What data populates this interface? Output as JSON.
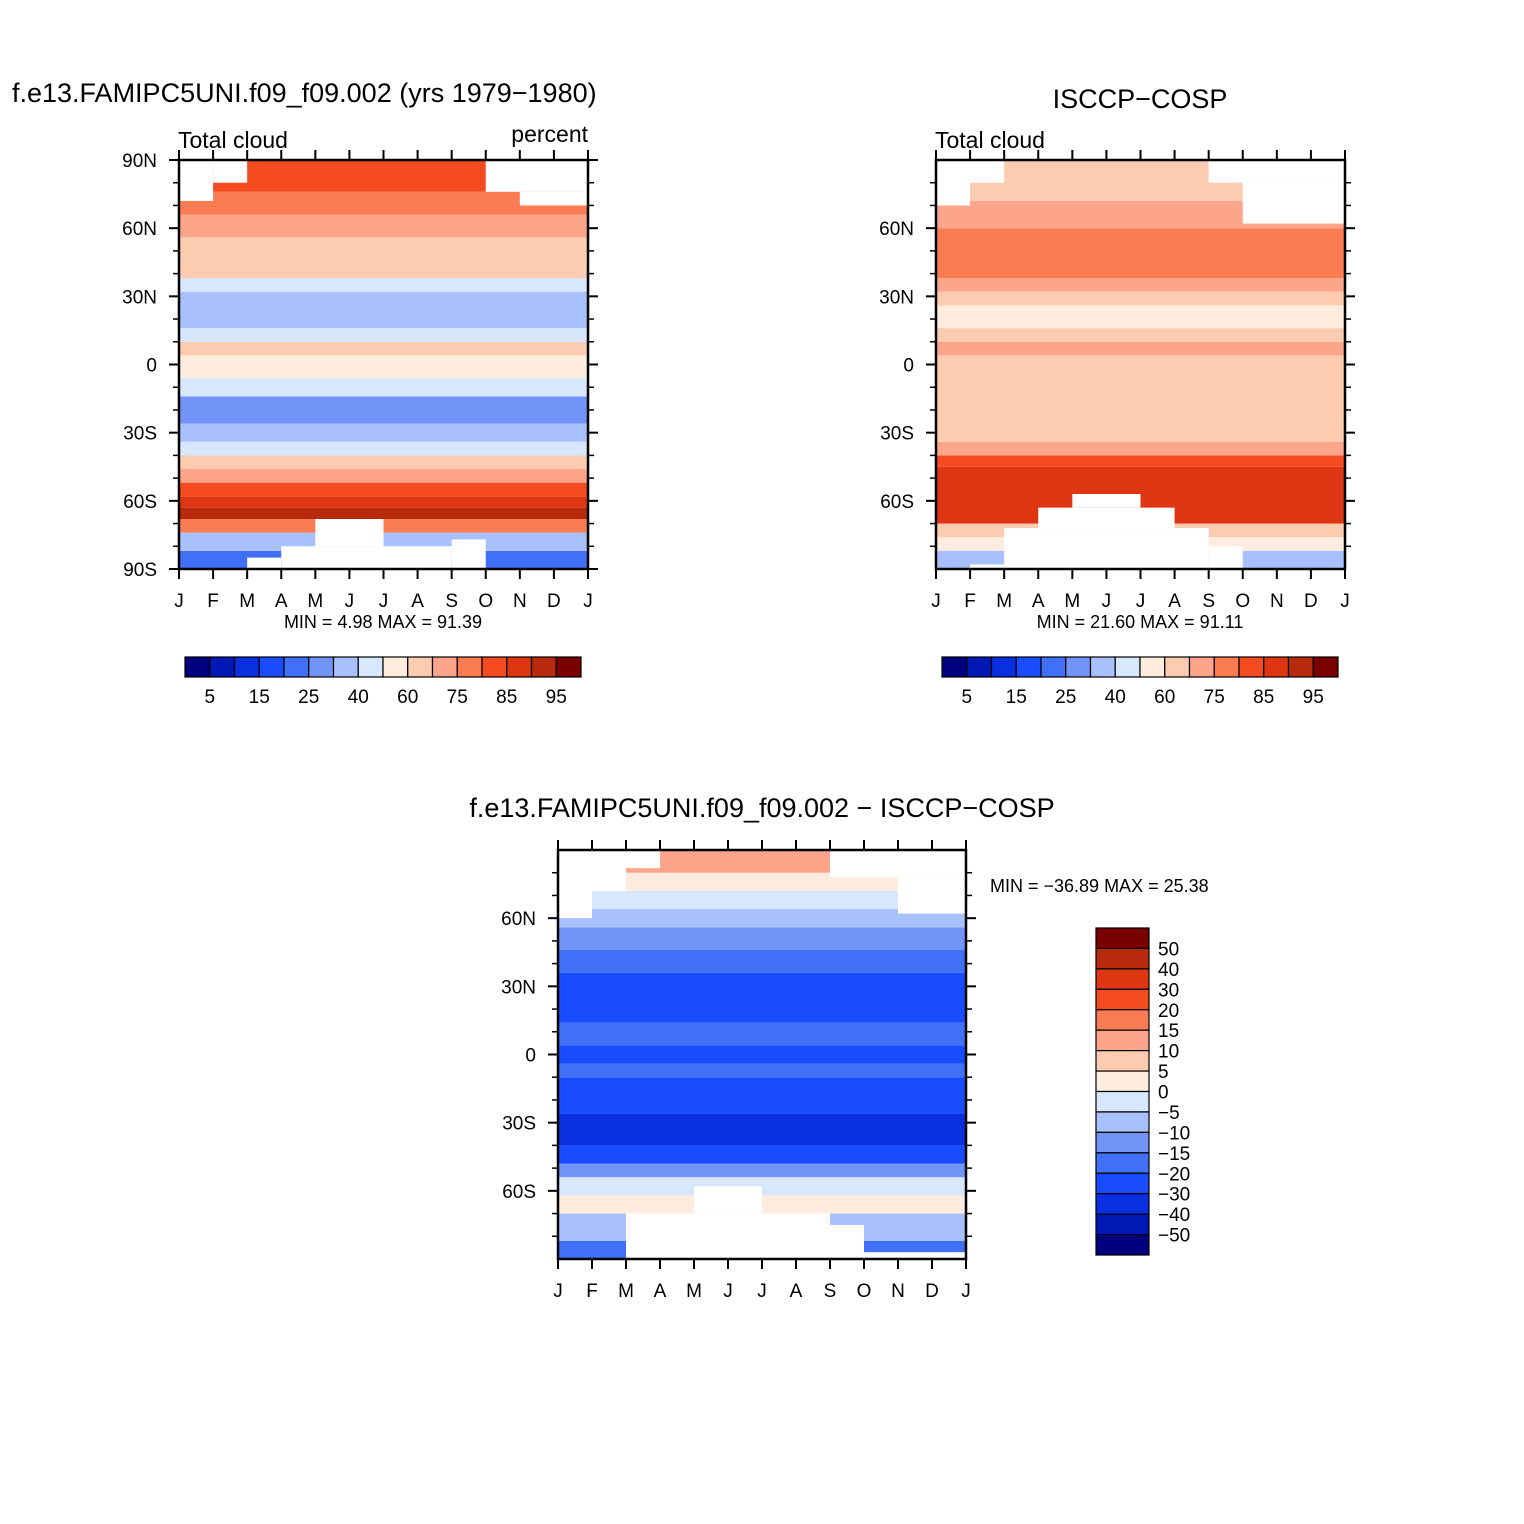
{
  "chart_data": [
    {
      "type": "heatmap",
      "title": "f.e13.FAMIPC5UNI.f09_f09.002 (yrs 1979−1980)",
      "left_label": "Total cloud",
      "right_label": "percent",
      "x_ticks": [
        "J",
        "F",
        "M",
        "A",
        "M",
        "J",
        "J",
        "A",
        "S",
        "O",
        "N",
        "D",
        "J"
      ],
      "y_ticks": [
        "90N",
        "60N",
        "30N",
        "0",
        "30S",
        "60S",
        "90S"
      ],
      "y_tick_values": [
        90,
        60,
        30,
        0,
        -30,
        -60,
        -90
      ],
      "ylim": [
        -90,
        90
      ],
      "stats_text": "MIN =    4.98  MAX =   91.39",
      "min": 4.98,
      "max": 91.39,
      "bands": [
        {
          "lat": [
            -90,
            -82
          ],
          "value": 22
        },
        {
          "lat": [
            -82,
            -74
          ],
          "value": 32
        },
        {
          "lat": [
            -74,
            -68
          ],
          "value": 78
        },
        {
          "lat": [
            -68,
            -63
          ],
          "value": 92
        },
        {
          "lat": [
            -63,
            -58
          ],
          "value": 88
        },
        {
          "lat": [
            -58,
            -52
          ],
          "value": 82
        },
        {
          "lat": [
            -52,
            -46
          ],
          "value": 72
        },
        {
          "lat": [
            -46,
            -40
          ],
          "value": 62
        },
        {
          "lat": [
            -40,
            -34
          ],
          "value": 43
        },
        {
          "lat": [
            -34,
            -26
          ],
          "value": 33
        },
        {
          "lat": [
            -26,
            -14
          ],
          "value": 28
        },
        {
          "lat": [
            -14,
            -6
          ],
          "value": 42
        },
        {
          "lat": [
            -6,
            4
          ],
          "value": 50
        },
        {
          "lat": [
            4,
            10
          ],
          "value": 60
        },
        {
          "lat": [
            10,
            16
          ],
          "value": 42
        },
        {
          "lat": [
            16,
            24
          ],
          "value": 32
        },
        {
          "lat": [
            24,
            32
          ],
          "value": 38
        },
        {
          "lat": [
            32,
            38
          ],
          "value": 43
        },
        {
          "lat": [
            38,
            46
          ],
          "value": 62
        },
        {
          "lat": [
            46,
            56
          ],
          "value": 68
        },
        {
          "lat": [
            56,
            66
          ],
          "value": 72
        },
        {
          "lat": [
            66,
            76
          ],
          "value": 78
        },
        {
          "lat": [
            76,
            90
          ],
          "value": 82
        }
      ],
      "masks": [
        {
          "month": [
            3,
            8
          ],
          "lat": [
            -90,
            -80
          ]
        },
        {
          "month": [
            4,
            6
          ],
          "lat": [
            -80,
            -68
          ]
        },
        {
          "month": [
            2,
            3
          ],
          "lat": [
            -90,
            -85
          ]
        },
        {
          "month": [
            8,
            9
          ],
          "lat": [
            -90,
            -77
          ]
        },
        {
          "month": [
            0,
            1
          ],
          "lat": [
            72,
            90
          ]
        },
        {
          "month": [
            1,
            2
          ],
          "lat": [
            80,
            90
          ]
        },
        {
          "month": [
            9,
            12
          ],
          "lat": [
            76,
            90
          ]
        },
        {
          "month": [
            10,
            12
          ],
          "lat": [
            70,
            76
          ]
        }
      ]
    },
    {
      "type": "heatmap",
      "title": "ISCCP−COSP",
      "left_label": "Total cloud",
      "x_ticks": [
        "J",
        "F",
        "M",
        "A",
        "M",
        "J",
        "J",
        "A",
        "S",
        "O",
        "N",
        "D",
        "J"
      ],
      "y_ticks": [
        "60N",
        "30N",
        "0",
        "30S",
        "60S"
      ],
      "y_tick_values": [
        60,
        30,
        0,
        -30,
        -60
      ],
      "ylim": [
        -90,
        90
      ],
      "stats_text": "MIN =   21.60  MAX =   91.11",
      "min": 21.6,
      "max": 91.11,
      "bands": [
        {
          "lat": [
            -90,
            -82
          ],
          "value": 35
        },
        {
          "lat": [
            -82,
            -76
          ],
          "value": 50
        },
        {
          "lat": [
            -76,
            -70
          ],
          "value": 65
        },
        {
          "lat": [
            -70,
            -45
          ],
          "value": 86
        },
        {
          "lat": [
            -45,
            -40
          ],
          "value": 82
        },
        {
          "lat": [
            -40,
            -34
          ],
          "value": 72
        },
        {
          "lat": [
            -34,
            -26
          ],
          "value": 66
        },
        {
          "lat": [
            -26,
            4
          ],
          "value": 62
        },
        {
          "lat": [
            4,
            10
          ],
          "value": 70
        },
        {
          "lat": [
            10,
            16
          ],
          "value": 62
        },
        {
          "lat": [
            16,
            26
          ],
          "value": 50
        },
        {
          "lat": [
            26,
            32
          ],
          "value": 62
        },
        {
          "lat": [
            32,
            38
          ],
          "value": 72
        },
        {
          "lat": [
            38,
            60
          ],
          "value": 78
        },
        {
          "lat": [
            60,
            72
          ],
          "value": 72
        },
        {
          "lat": [
            72,
            90
          ],
          "value": 66
        }
      ],
      "masks": [
        {
          "month": [
            2,
            8
          ],
          "lat": [
            -90,
            -72
          ]
        },
        {
          "month": [
            3,
            7
          ],
          "lat": [
            -72,
            -63
          ]
        },
        {
          "month": [
            4,
            6
          ],
          "lat": [
            -63,
            -57
          ]
        },
        {
          "month": [
            8,
            9
          ],
          "lat": [
            -90,
            -80
          ]
        },
        {
          "month": [
            1,
            2
          ],
          "lat": [
            -90,
            -88
          ]
        },
        {
          "month": [
            0,
            1
          ],
          "lat": [
            70,
            90
          ]
        },
        {
          "month": [
            1,
            2
          ],
          "lat": [
            80,
            90
          ]
        },
        {
          "month": [
            8,
            12
          ],
          "lat": [
            80,
            90
          ]
        },
        {
          "month": [
            9,
            12
          ],
          "lat": [
            62,
            80
          ]
        }
      ]
    },
    {
      "type": "heatmap",
      "title": "f.e13.FAMIPC5UNI.f09_f09.002 − ISCCP−COSP",
      "x_ticks": [
        "J",
        "F",
        "M",
        "A",
        "M",
        "J",
        "J",
        "A",
        "S",
        "O",
        "N",
        "D",
        "J"
      ],
      "y_ticks": [
        "60N",
        "30N",
        "0",
        "30S",
        "60S"
      ],
      "y_tick_values": [
        60,
        30,
        0,
        -30,
        -60
      ],
      "ylim": [
        -90,
        90
      ],
      "stats_text": "MIN = −36.89  MAX =   25.38",
      "min": -36.89,
      "max": 25.38,
      "bands": [
        {
          "lat": [
            -90,
            -82
          ],
          "value": -17
        },
        {
          "lat": [
            -82,
            -70
          ],
          "value": -8
        },
        {
          "lat": [
            -70,
            -62
          ],
          "value": 2
        },
        {
          "lat": [
            -62,
            -54
          ],
          "value": -3
        },
        {
          "lat": [
            -54,
            -48
          ],
          "value": -12
        },
        {
          "lat": [
            -48,
            -40
          ],
          "value": -22
        },
        {
          "lat": [
            -40,
            -26
          ],
          "value": -32
        },
        {
          "lat": [
            -26,
            -10
          ],
          "value": -25
        },
        {
          "lat": [
            -10,
            -4
          ],
          "value": -18
        },
        {
          "lat": [
            -4,
            4
          ],
          "value": -22
        },
        {
          "lat": [
            4,
            14
          ],
          "value": -16
        },
        {
          "lat": [
            14,
            36
          ],
          "value": -25
        },
        {
          "lat": [
            36,
            46
          ],
          "value": -18
        },
        {
          "lat": [
            46,
            56
          ],
          "value": -12
        },
        {
          "lat": [
            56,
            64
          ],
          "value": -8
        },
        {
          "lat": [
            64,
            72
          ],
          "value": -3
        },
        {
          "lat": [
            72,
            80
          ],
          "value": 2
        },
        {
          "lat": [
            80,
            90
          ],
          "value": 12
        }
      ],
      "masks": [
        {
          "month": [
            2,
            8
          ],
          "lat": [
            -90,
            -70
          ]
        },
        {
          "month": [
            4,
            6
          ],
          "lat": [
            -70,
            -58
          ]
        },
        {
          "month": [
            8,
            9
          ],
          "lat": [
            -90,
            -75
          ]
        },
        {
          "month": [
            9,
            12
          ],
          "lat": [
            -90,
            -87
          ]
        },
        {
          "month": [
            0,
            1
          ],
          "lat": [
            60,
            90
          ]
        },
        {
          "month": [
            1,
            2
          ],
          "lat": [
            72,
            90
          ]
        },
        {
          "month": [
            2,
            3
          ],
          "lat": [
            82,
            90
          ]
        },
        {
          "month": [
            8,
            12
          ],
          "lat": [
            78,
            90
          ]
        },
        {
          "month": [
            10,
            12
          ],
          "lat": [
            62,
            78
          ]
        }
      ]
    }
  ],
  "legend_abs": {
    "orientation": "horizontal",
    "labels": [
      "5",
      "15",
      "25",
      "40",
      "60",
      "75",
      "85",
      "95"
    ],
    "levels": [
      5,
      10,
      15,
      20,
      25,
      30,
      40,
      50,
      60,
      70,
      75,
      80,
      85,
      90,
      95
    ],
    "colors": [
      "#00007f",
      "#0019b4",
      "#0a2fe0",
      "#1a4cff",
      "#3f70f5",
      "#7294f7",
      "#a8c0fb",
      "#d6e7fe",
      "#feeddf",
      "#fdcbb0",
      "#fca58a",
      "#fa7c52",
      "#f54b20",
      "#de3513",
      "#b72a0e",
      "#7a0000"
    ]
  },
  "legend_diff": {
    "orientation": "vertical",
    "labels": [
      "50",
      "40",
      "30",
      "20",
      "15",
      "10",
      "5",
      "0",
      "−5",
      "−10",
      "−15",
      "−20",
      "−30",
      "−40",
      "−50"
    ],
    "levels": [
      -50,
      -40,
      -30,
      -20,
      -15,
      -10,
      -5,
      0,
      5,
      10,
      15,
      20,
      30,
      40,
      50
    ],
    "colors": [
      "#00007f",
      "#0019b4",
      "#0a2fe0",
      "#1a4cff",
      "#3f70f5",
      "#7294f7",
      "#a8c0fb",
      "#d6e7fe",
      "#feeddf",
      "#fdcbb0",
      "#fca58a",
      "#fa7c52",
      "#f54b20",
      "#de3513",
      "#b72a0e",
      "#7a0000"
    ]
  }
}
